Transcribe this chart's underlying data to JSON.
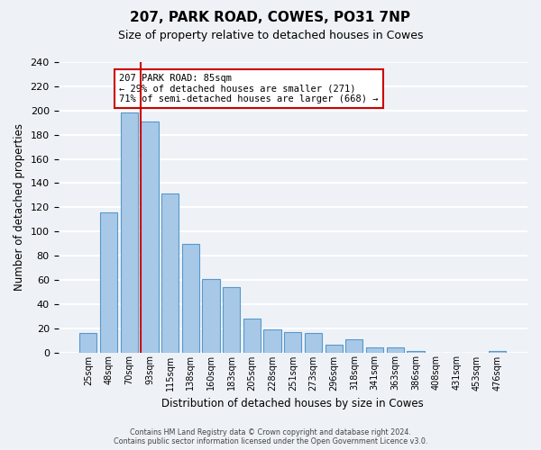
{
  "title": "207, PARK ROAD, COWES, PO31 7NP",
  "subtitle": "Size of property relative to detached houses in Cowes",
  "xlabel": "Distribution of detached houses by size in Cowes",
  "ylabel": "Number of detached properties",
  "bar_labels": [
    "25sqm",
    "48sqm",
    "70sqm",
    "93sqm",
    "115sqm",
    "138sqm",
    "160sqm",
    "183sqm",
    "205sqm",
    "228sqm",
    "251sqm",
    "273sqm",
    "296sqm",
    "318sqm",
    "341sqm",
    "363sqm",
    "386sqm",
    "408sqm",
    "431sqm",
    "453sqm",
    "476sqm"
  ],
  "bar_values": [
    16,
    116,
    198,
    191,
    131,
    90,
    61,
    54,
    28,
    19,
    17,
    16,
    6,
    11,
    4,
    4,
    1,
    0,
    0,
    0,
    1
  ],
  "bar_color": "#a8c8e8",
  "bar_edge_color": "#5599cc",
  "marker_line_index": 3,
  "marker_line_color": "#cc0000",
  "annotation_text_line1": "207 PARK ROAD: 85sqm",
  "annotation_text_line2": "← 29% of detached houses are smaller (271)",
  "annotation_text_line3": "71% of semi-detached houses are larger (668) →",
  "annotation_box_color": "#ffffff",
  "annotation_box_edge_color": "#cc0000",
  "ylim": [
    0,
    240
  ],
  "yticks": [
    0,
    20,
    40,
    60,
    80,
    100,
    120,
    140,
    160,
    180,
    200,
    220,
    240
  ],
  "footer_line1": "Contains HM Land Registry data © Crown copyright and database right 2024.",
  "footer_line2": "Contains public sector information licensed under the Open Government Licence v3.0.",
  "bg_color": "#eef2f7",
  "grid_color": "#ffffff",
  "bar_width": 0.85
}
